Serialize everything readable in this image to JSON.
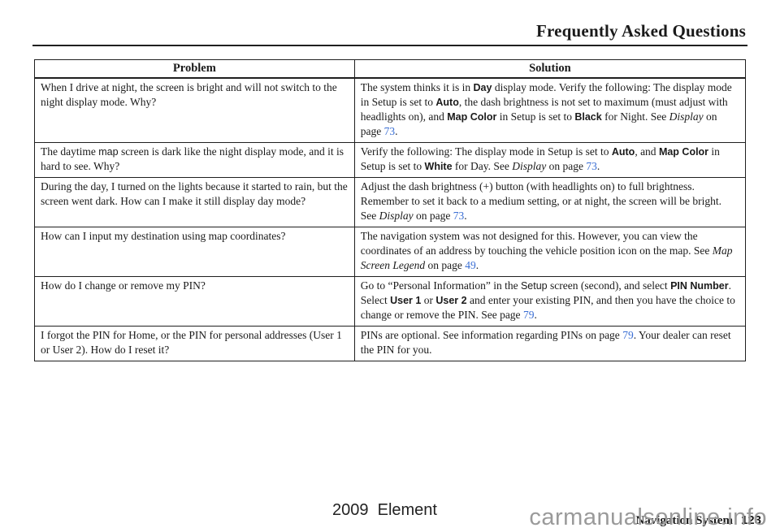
{
  "page_title": "Frequently Asked Questions",
  "table": {
    "headers": [
      "Problem",
      "Solution"
    ],
    "rows": [
      {
        "problem": [
          {
            "t": "When I drive at night, the screen is bright and will not switch to the night display mode. Why?",
            "s": "serif"
          }
        ],
        "solution": [
          {
            "t": "The system thinks it is in ",
            "s": "serif"
          },
          {
            "t": "Day",
            "s": "uib"
          },
          {
            "t": " display mode. Verify the following: The display mode in Setup is set to ",
            "s": "serif"
          },
          {
            "t": "Auto",
            "s": "uib"
          },
          {
            "t": ", the dash brightness is not set to maximum (must adjust with headlights on), and ",
            "s": "serif"
          },
          {
            "t": "Map Color",
            "s": "uib"
          },
          {
            "t": " in Setup is set to ",
            "s": "serif"
          },
          {
            "t": "Black",
            "s": "uib"
          },
          {
            "t": " for Night. See ",
            "s": "serif"
          },
          {
            "t": "Display",
            "s": "it"
          },
          {
            "t": " on page ",
            "s": "serif"
          },
          {
            "t": "73",
            "s": "link"
          },
          {
            "t": ".",
            "s": "serif"
          }
        ]
      },
      {
        "problem": [
          {
            "t": "The daytime ",
            "s": "serif"
          },
          {
            "t": "map",
            "s": "ui"
          },
          {
            "t": " screen is dark like the night display mode, and it is hard to see. Why?",
            "s": "serif"
          }
        ],
        "solution": [
          {
            "t": "Verify the following: The display mode in Setup is set to ",
            "s": "serif"
          },
          {
            "t": "Auto",
            "s": "uib"
          },
          {
            "t": ", and ",
            "s": "serif"
          },
          {
            "t": "Map Color",
            "s": "uib"
          },
          {
            "t": " in Setup is set to ",
            "s": "serif"
          },
          {
            "t": "White",
            "s": "uib"
          },
          {
            "t": " for Day. See ",
            "s": "serif"
          },
          {
            "t": "Display",
            "s": "it"
          },
          {
            "t": " on page ",
            "s": "serif"
          },
          {
            "t": "73",
            "s": "link"
          },
          {
            "t": ".",
            "s": "serif"
          }
        ]
      },
      {
        "problem": [
          {
            "t": "During the day, I turned on the lights because it started to rain, but the screen went dark. How can I make it still display day mode?",
            "s": "serif"
          }
        ],
        "solution": [
          {
            "t": "Adjust the dash brightness (+) button (with headlights on) to full brightness. Remember to set it back to a medium setting, or at night, the screen will be bright. See ",
            "s": "serif"
          },
          {
            "t": "Display",
            "s": "it"
          },
          {
            "t": " on page ",
            "s": "serif"
          },
          {
            "t": "73",
            "s": "link"
          },
          {
            "t": ".",
            "s": "serif"
          }
        ]
      },
      {
        "problem": [
          {
            "t": "How can I input my destination using map coordinates?",
            "s": "serif"
          }
        ],
        "solution": [
          {
            "t": "The navigation system was not designed for this. However, you can view the coordinates of an address by touching the vehicle position icon on the map. See ",
            "s": "serif"
          },
          {
            "t": "Map Screen Legend",
            "s": "it"
          },
          {
            "t": " on page ",
            "s": "serif"
          },
          {
            "t": "49",
            "s": "link"
          },
          {
            "t": ".",
            "s": "serif"
          }
        ]
      },
      {
        "problem": [
          {
            "t": "How do I change or remove my PIN?",
            "s": "serif"
          }
        ],
        "solution": [
          {
            "t": "Go to “Personal Information” in the ",
            "s": "serif"
          },
          {
            "t": "Setup",
            "s": "ui"
          },
          {
            "t": " screen (second), and select ",
            "s": "serif"
          },
          {
            "t": "PIN Number",
            "s": "uib"
          },
          {
            "t": ". Select ",
            "s": "serif"
          },
          {
            "t": "User 1",
            "s": "uib"
          },
          {
            "t": " or ",
            "s": "serif"
          },
          {
            "t": "User 2",
            "s": "uib"
          },
          {
            "t": " and enter your existing PIN, and then you have the choice to change or remove the PIN. See page ",
            "s": "serif"
          },
          {
            "t": "79",
            "s": "link"
          },
          {
            "t": ".",
            "s": "serif"
          }
        ]
      },
      {
        "problem": [
          {
            "t": "I forgot the PIN for Home, or the PIN for personal addresses (User 1 or User 2). How do I reset it?",
            "s": "serif"
          }
        ],
        "solution": [
          {
            "t": "PINs are optional. See information regarding PINs on page ",
            "s": "serif"
          },
          {
            "t": "79",
            "s": "link"
          },
          {
            "t": ". Your dealer can reset the PIN for you.",
            "s": "serif"
          }
        ]
      }
    ]
  },
  "footer": {
    "model": "2009  Element",
    "section": "Navigation System",
    "page_number": "123",
    "watermark": "carmanualsonline.info"
  }
}
